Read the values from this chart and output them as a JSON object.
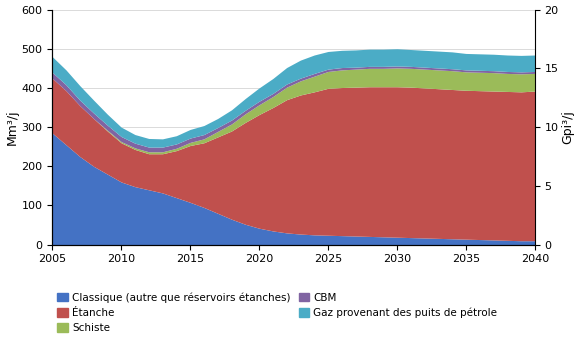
{
  "years": [
    2005,
    2006,
    2007,
    2008,
    2009,
    2010,
    2011,
    2012,
    2013,
    2014,
    2015,
    2016,
    2017,
    2018,
    2019,
    2020,
    2021,
    2022,
    2023,
    2024,
    2025,
    2026,
    2027,
    2028,
    2029,
    2030,
    2031,
    2032,
    2033,
    2034,
    2035,
    2036,
    2037,
    2038,
    2039,
    2040
  ],
  "classique": [
    285,
    255,
    225,
    200,
    180,
    160,
    148,
    140,
    132,
    120,
    108,
    95,
    80,
    65,
    52,
    42,
    35,
    30,
    27,
    25,
    24,
    23,
    22,
    21,
    20,
    19,
    18,
    17,
    16,
    15,
    14,
    13,
    12,
    11,
    10,
    10
  ],
  "etanche": [
    140,
    138,
    130,
    122,
    110,
    100,
    95,
    92,
    100,
    120,
    145,
    165,
    195,
    225,
    260,
    290,
    315,
    340,
    355,
    365,
    375,
    378,
    380,
    382,
    383,
    384,
    384,
    383,
    382,
    381,
    380,
    380,
    380,
    380,
    380,
    382
  ],
  "schiste": [
    0,
    0,
    0,
    0,
    2,
    3,
    4,
    5,
    5,
    6,
    8,
    10,
    14,
    18,
    22,
    25,
    28,
    32,
    36,
    40,
    43,
    45,
    46,
    47,
    47,
    48,
    48,
    48,
    48,
    48,
    47,
    47,
    47,
    46,
    46,
    45
  ],
  "cbm": [
    15,
    15,
    14,
    14,
    13,
    13,
    12,
    12,
    12,
    11,
    11,
    11,
    10,
    10,
    9,
    9,
    8,
    8,
    7,
    7,
    6,
    6,
    5,
    5,
    5,
    5,
    5,
    5,
    5,
    5,
    5,
    5,
    5,
    5,
    5,
    5
  ],
  "gaz_puits": [
    40,
    38,
    37,
    33,
    28,
    24,
    22,
    22,
    21,
    21,
    22,
    23,
    23,
    26,
    30,
    34,
    38,
    42,
    46,
    47,
    45,
    44,
    44,
    44,
    44,
    44,
    43,
    43,
    43,
    43,
    42,
    42,
    42,
    42,
    42,
    42
  ],
  "colors": {
    "classique": "#4472C4",
    "etanche": "#C0504D",
    "schiste": "#9BBB59",
    "cbm": "#8064A2",
    "gaz_puits": "#4BACC6"
  },
  "ylabel_left": "Mm³/j",
  "ylabel_right": "Gpi³/j",
  "ylim_left": [
    0,
    600
  ],
  "ylim_right": [
    0,
    20
  ],
  "yticks_left": [
    0,
    100,
    200,
    300,
    400,
    500,
    600
  ],
  "yticks_right": [
    0,
    5,
    10,
    15,
    20
  ],
  "xticks": [
    2005,
    2010,
    2015,
    2020,
    2025,
    2030,
    2035,
    2040
  ],
  "legend": [
    "Classique (autre que réservoirs étanches)",
    "Étanche",
    "Schiste",
    "CBM",
    "Gaz provenant des puits de pétrole"
  ],
  "legend_colors_order": [
    "classique",
    "etanche",
    "schiste",
    "cbm",
    "gaz_puits"
  ]
}
